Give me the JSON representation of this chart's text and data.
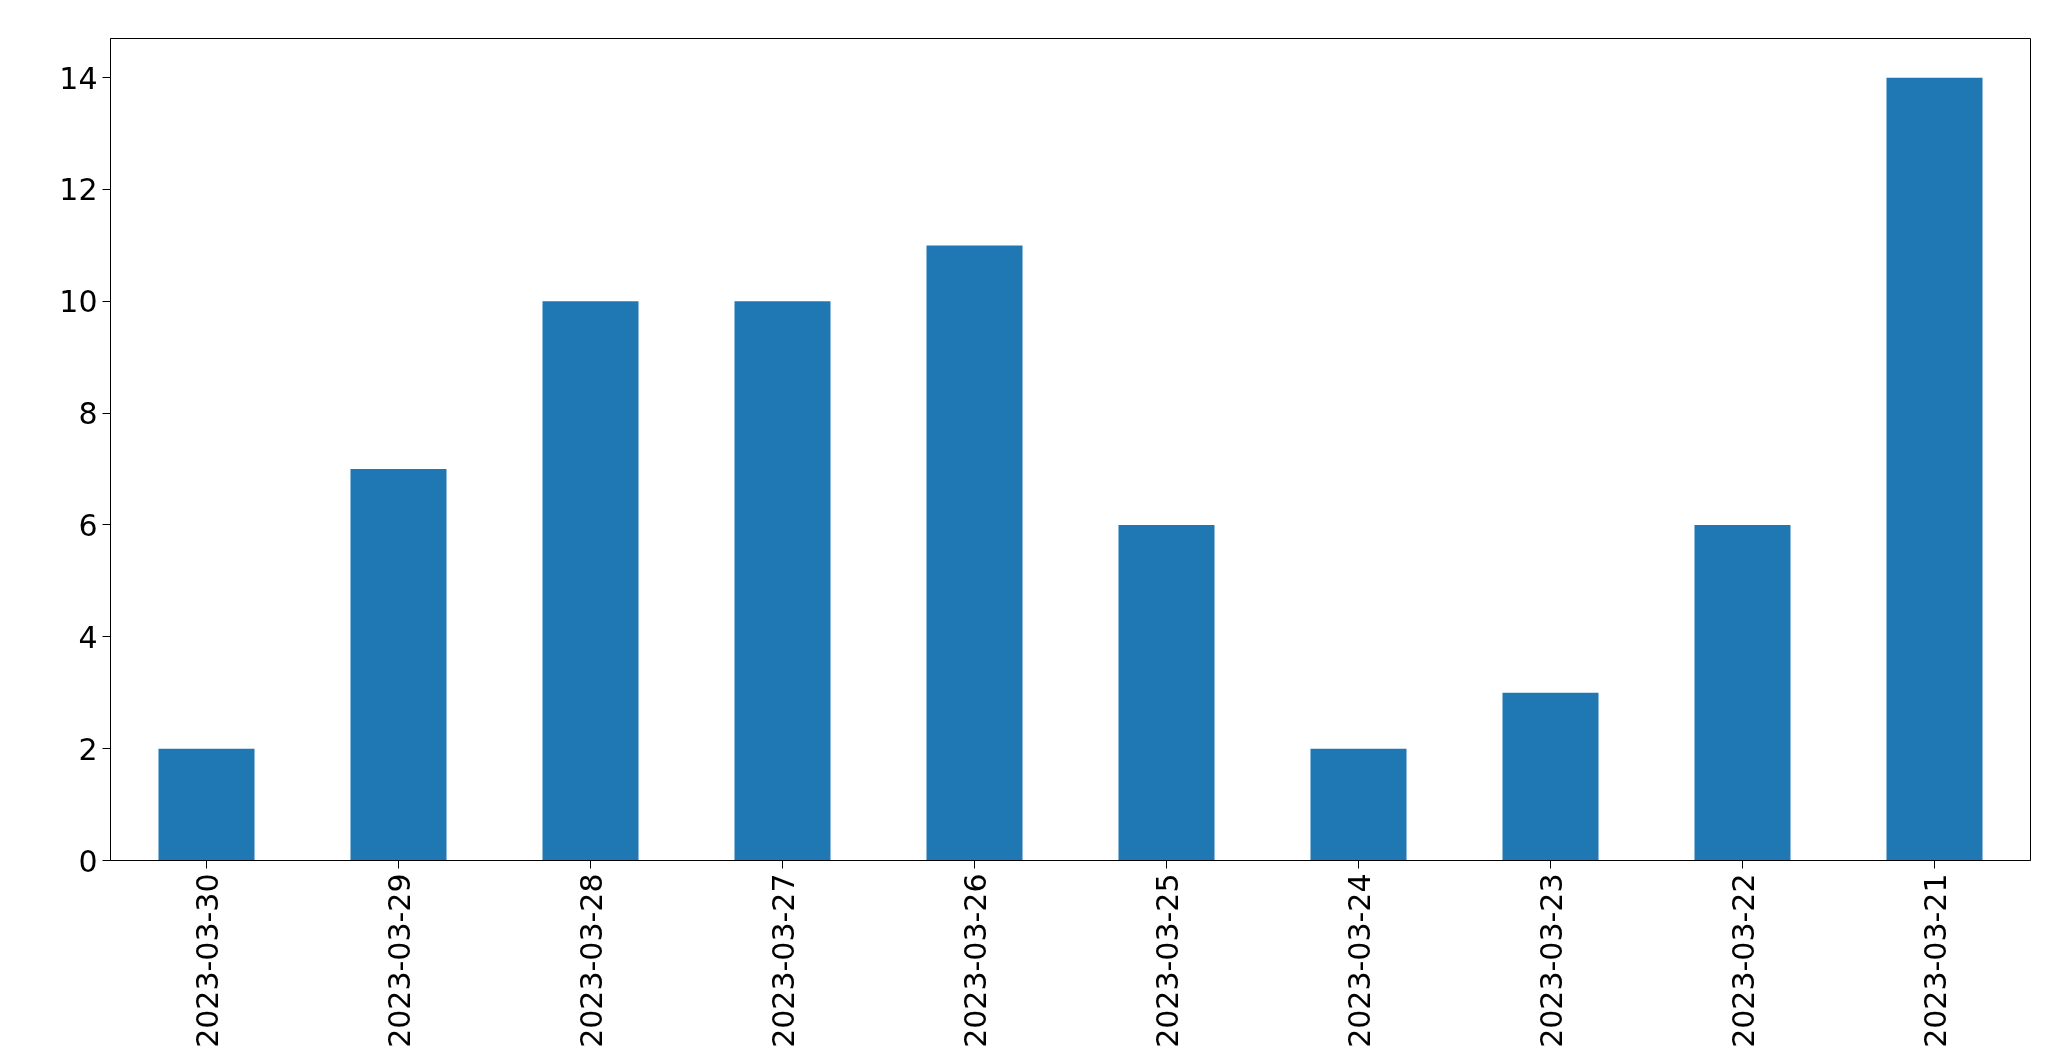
{
  "chart_data": {
    "type": "bar",
    "categories": [
      "2023-03-30",
      "2023-03-29",
      "2023-03-28",
      "2023-03-27",
      "2023-03-26",
      "2023-03-25",
      "2023-03-24",
      "2023-03-23",
      "2023-03-22",
      "2023-03-21"
    ],
    "values": [
      2,
      7,
      10,
      10,
      11,
      6,
      2,
      3,
      6,
      14
    ],
    "color": "#1f77b4",
    "ylim": [
      0,
      14.7
    ],
    "yticks": [
      0,
      2,
      4,
      6,
      8,
      10,
      12,
      14
    ],
    "grid": false
  }
}
